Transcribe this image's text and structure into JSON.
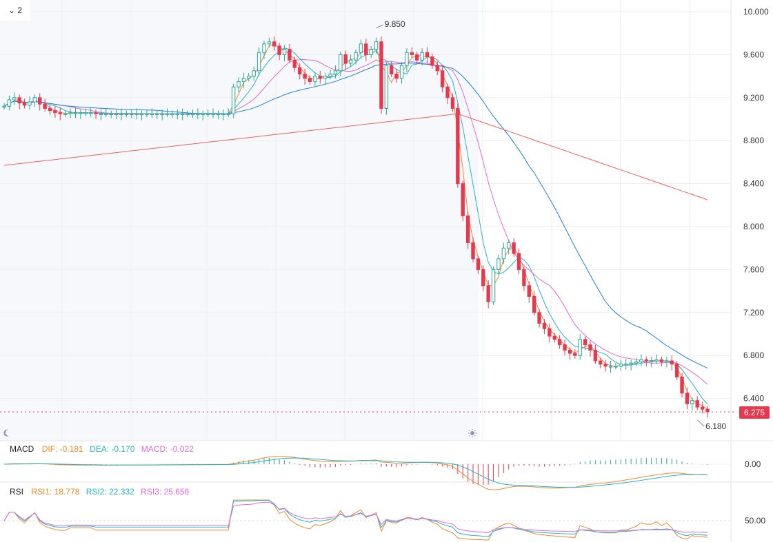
{
  "toolbar": {
    "collapse_icon": "chevron-down-icon",
    "collapse_label": "2"
  },
  "colors": {
    "up": "#26a69a",
    "down": "#e8384f",
    "ma1": "#f0892a",
    "ma2": "#22b4c8",
    "ma3": "#e06ad6",
    "ma4": "#1e7fd6",
    "ma5": "#f0605a",
    "grid": "#eeeeee"
  },
  "price_axis": {
    "ticks": [
      "10.000",
      "9.600",
      "9.200",
      "8.800",
      "8.400",
      "8.000",
      "7.600",
      "7.200",
      "6.800",
      "6.400"
    ],
    "last_price": "6.275"
  },
  "annotations": {
    "high": "9.850",
    "low": "6.180"
  },
  "macd_legend": {
    "title": "MACD",
    "dif": "DIF: -0.181",
    "dea": "DEA: -0.170",
    "macd": "MACD: -0.022",
    "tick": "0.00"
  },
  "rsi_legend": {
    "title": "RSI",
    "rsi1": "RSI1: 18.778",
    "rsi2": "RSI2: 22.332",
    "rsi3": "RSI3: 25.656",
    "tick": "50.00"
  },
  "icons": {
    "night": "moon-icon",
    "day": "sun-icon"
  },
  "chart_data": {
    "type": "candlestick",
    "ylim": [
      6.1,
      10.1
    ],
    "close": [
      9.12,
      9.18,
      9.2,
      9.15,
      9.13,
      9.16,
      9.2,
      9.14,
      9.1,
      9.08,
      9.06,
      9.05,
      9.05,
      9.06,
      9.06,
      9.06,
      9.06,
      9.06,
      9.05,
      9.05,
      9.05,
      9.05,
      9.05,
      9.05,
      9.05,
      9.05,
      9.05,
      9.05,
      9.05,
      9.05,
      9.05,
      9.05,
      9.05,
      9.05,
      9.05,
      9.05,
      9.05,
      9.05,
      9.05,
      9.05,
      9.05,
      9.05,
      9.05,
      9.05,
      9.05,
      9.3,
      9.35,
      9.38,
      9.4,
      9.45,
      9.62,
      9.7,
      9.72,
      9.68,
      9.6,
      9.65,
      9.55,
      9.48,
      9.42,
      9.38,
      9.35,
      9.4,
      9.38,
      9.4,
      9.42,
      9.45,
      9.6,
      9.52,
      9.55,
      9.62,
      9.7,
      9.6,
      9.65,
      9.72,
      9.1,
      9.5,
      9.42,
      9.38,
      9.5,
      9.62,
      9.6,
      9.55,
      9.62,
      9.58,
      9.5,
      9.45,
      9.3,
      9.2,
      9.1,
      8.4,
      8.1,
      7.85,
      7.7,
      7.6,
      7.45,
      7.3,
      7.6,
      7.7,
      7.8,
      7.85,
      7.75,
      7.6,
      7.45,
      7.35,
      7.2,
      7.1,
      7.05,
      6.98,
      6.95,
      6.9,
      6.85,
      6.82,
      6.8,
      6.95,
      6.9,
      6.85,
      6.75,
      6.72,
      6.7,
      6.7,
      6.7,
      6.72,
      6.72,
      6.73,
      6.74,
      6.76,
      6.75,
      6.75,
      6.76,
      6.74,
      6.75,
      6.72,
      6.6,
      6.45,
      6.35,
      6.38,
      6.32,
      6.3,
      6.275
    ],
    "ma_series": [
      "MA5",
      "MA10",
      "MA20",
      "MA60",
      "MA250"
    ],
    "macd": {
      "dif_last": -0.181,
      "dea_last": -0.17,
      "macd_last": -0.022
    },
    "rsi": {
      "rsi1_last": 18.778,
      "rsi2_last": 22.332,
      "rsi3_last": 25.656
    }
  }
}
